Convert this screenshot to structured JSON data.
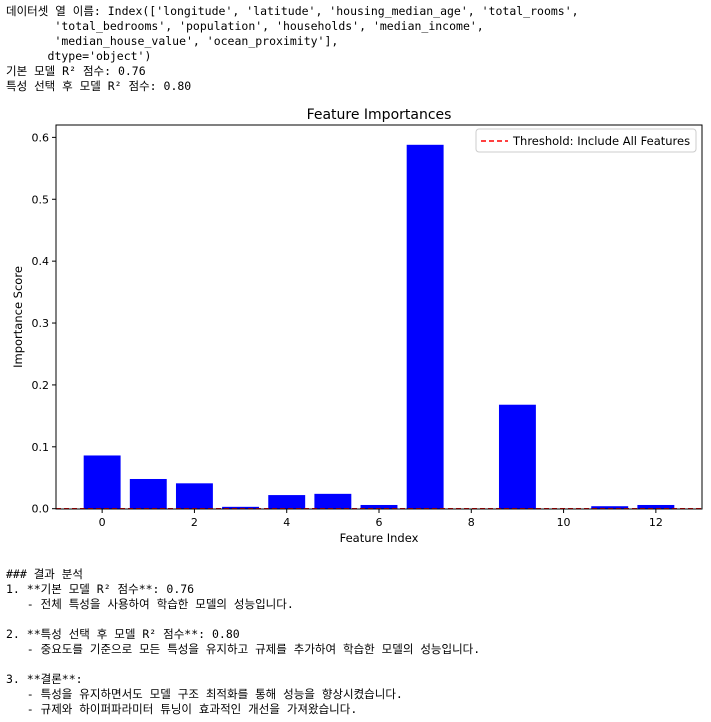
{
  "console_top": [
    "데이터셋 열 이름: Index(['longitude', 'latitude', 'housing_median_age', 'total_rooms',",
    "       'total_bedrooms', 'population', 'households', 'median_income',",
    "       'median_house_value', 'ocean_proximity'],",
    "      dtype='object')",
    "기본 모델 R² 점수: 0.76",
    "특성 선택 후 모델 R² 점수: 0.80"
  ],
  "console_bottom": [
    "### 결과 분석",
    "1. **기본 모델 R² 점수**: 0.76",
    "   - 전체 특성을 사용하여 학습한 모델의 성능입니다.",
    "",
    "2. **특성 선택 후 모델 R² 점수**: 0.80",
    "   - 중요도를 기준으로 모든 특성을 유지하고 규제를 추가하여 학습한 모델의 성능입니다.",
    "",
    "3. **결론**:",
    "   - 특성을 유지하면서도 모델 구조 최적화를 통해 성능을 향상시켰습니다.",
    "   - 규제와 하이퍼파라미터 튜닝이 효과적인 개선을 가져왔습니다."
  ],
  "chart_data": {
    "type": "bar",
    "title": "Feature Importances",
    "xlabel": "Feature Index",
    "ylabel": "Importance Score",
    "x": [
      0,
      1,
      2,
      3,
      4,
      5,
      6,
      7,
      8,
      9,
      10,
      11,
      12
    ],
    "values": [
      0.086,
      0.048,
      0.041,
      0.003,
      0.022,
      0.024,
      0.006,
      0.588,
      0.0,
      0.168,
      0.0,
      0.004,
      0.006
    ],
    "bar_color": "#0000ff",
    "xlim": [
      -1,
      13
    ],
    "ylim": [
      -0.0005,
      0.62
    ],
    "xticks": [
      0,
      2,
      4,
      6,
      8,
      10,
      12
    ],
    "yticks": [
      0.0,
      0.1,
      0.2,
      0.3,
      0.4,
      0.5,
      0.6
    ],
    "ytick_labels": [
      "0.0",
      "0.1",
      "0.2",
      "0.3",
      "0.4",
      "0.5",
      "0.6"
    ],
    "threshold": {
      "value": 0,
      "label": "Threshold: Include All Features",
      "color": "#ff0000",
      "style": "dashed"
    },
    "legend_position": "top-right",
    "grid": false
  }
}
